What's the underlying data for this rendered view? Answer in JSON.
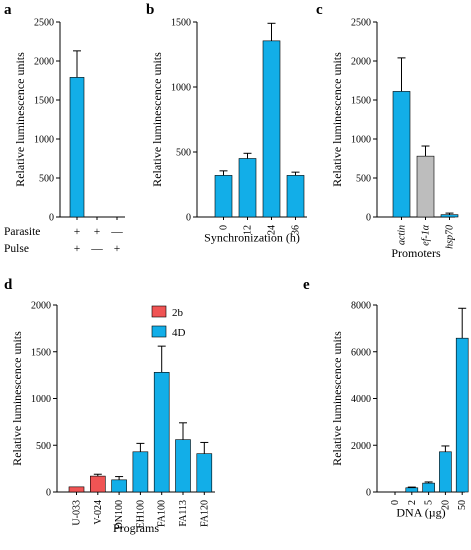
{
  "chart_data": [
    {
      "panel": "a",
      "type": "bar",
      "categories": [
        "",
        "",
        ""
      ],
      "values": [
        1790,
        0,
        0
      ],
      "errors": [
        340,
        0,
        0
      ],
      "ylabel": "Relative luminescence units",
      "xlabel": "",
      "ylim": [
        0,
        2500
      ],
      "yticks": [
        "0",
        "500",
        "1000",
        "1500",
        "2000",
        "2500"
      ],
      "conditions": [
        {
          "label": "Parasite",
          "marks": [
            "+",
            "+",
            "—"
          ]
        },
        {
          "label": "Pulse",
          "marks": [
            "+",
            "—",
            "+"
          ]
        }
      ],
      "colors": [
        "#12aee8"
      ]
    },
    {
      "panel": "b",
      "type": "bar",
      "categories": [
        "0",
        "12",
        "24",
        "36"
      ],
      "values": [
        320,
        450,
        1355,
        320
      ],
      "errors": [
        35,
        40,
        135,
        25
      ],
      "ylabel": "Relative luminescence units",
      "xlabel": "Synchronization (h)",
      "ylim": [
        0,
        1500
      ],
      "yticks": [
        "0",
        "500",
        "1000",
        "1500"
      ],
      "colors": [
        "#12aee8"
      ]
    },
    {
      "panel": "c",
      "type": "bar",
      "categories": [
        "actin",
        "ef-1α",
        "hsp70"
      ],
      "values": [
        1610,
        780,
        30
      ],
      "errors": [
        430,
        130,
        20
      ],
      "ylabel": "Relative luminescence units",
      "xlabel": "Promoters",
      "ylim": [
        0,
        2500
      ],
      "yticks": [
        "0",
        "500",
        "1000",
        "1500",
        "2000",
        "2500"
      ],
      "colors": [
        "#12aee8",
        "#bdbdbd",
        "#12aee8"
      ]
    },
    {
      "panel": "d",
      "type": "bar",
      "categories": [
        "U-033",
        "V-024",
        "DN100",
        "EH100",
        "FA100",
        "FA113",
        "FA120"
      ],
      "values": [
        55,
        170,
        130,
        430,
        1280,
        560,
        410
      ],
      "errors": [
        0,
        20,
        35,
        90,
        280,
        180,
        120
      ],
      "ylabel": "Relative luminescence units",
      "xlabel": "Programs",
      "ylim": [
        0,
        2000
      ],
      "yticks": [
        "0",
        "500",
        "1000",
        "1500",
        "2000"
      ],
      "series_groups": [
        0,
        0,
        1,
        1,
        1,
        1,
        1
      ],
      "legend": [
        {
          "name": "2b",
          "color": "#f05454"
        },
        {
          "name": "4D",
          "color": "#12aee8"
        }
      ]
    },
    {
      "panel": "e",
      "type": "bar",
      "categories": [
        "0",
        "2",
        "5",
        "20",
        "50"
      ],
      "values": [
        0,
        180,
        380,
        1720,
        6580
      ],
      "errors": [
        0,
        30,
        50,
        250,
        1280
      ],
      "ylabel": "Relative luminescence units",
      "xlabel": "DNA (µg)",
      "ylim": [
        0,
        8000
      ],
      "yticks": [
        "0",
        "2000",
        "4000",
        "6000",
        "8000"
      ],
      "colors": [
        "#12aee8"
      ]
    }
  ]
}
